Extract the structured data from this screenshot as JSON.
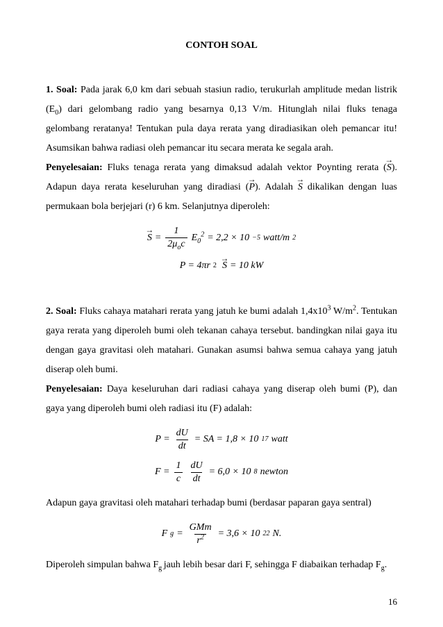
{
  "title": "CONTOH SOAL",
  "q1": {
    "label": "1. Soal:",
    "text_a": " Pada jarak 6,0 km dari sebuah stasiun radio, terukurlah amplitude medan listrik (E",
    "e0_sub": "0",
    "text_b": ") dari gelombang radio yang besarnya 0,13 V/m. Hitunglah nilai fluks tenaga gelombang reratanya! Tentukan pula daya rerata yang diradiasikan oleh pemancar itu! Asumsikan bahwa radiasi oleh pemancar itu secara merata ke segala arah."
  },
  "s1": {
    "label": "Penyelesaian:",
    "text_a": " Fluks tenaga rerata yang dimaksud adalah vektor Poynting rerata (",
    "svec": "S",
    "text_b": "). Adapun daya rerata keseluruhan yang diradiasi (",
    "pvec": "P",
    "text_c": "). Adalah ",
    "svec2": "S",
    "text_d": " dikalikan dengan luas permukaan bola berjejari (r) 6 km. Selanjutnya diperoleh:"
  },
  "eq1": {
    "S": "S",
    "eq": " = ",
    "num1": "1",
    "den_2mu": "2μ",
    "den_o": "o",
    "den_c": "c",
    "E": "E",
    "E_sub": "0",
    "E_sup": "2",
    "val": " = 2,2 × 10",
    "exp": "−5",
    "unit": "watt/m",
    "unit_sup": "2"
  },
  "eq2": {
    "P": "P = 4πr",
    "sup2": "2",
    "sp": " ",
    "S": "S",
    "val": " = 10 kW"
  },
  "q2": {
    "label": "2. Soal:",
    "text_a": " Fluks cahaya matahari rerata yang jatuh ke bumi adalah 1,4x10",
    "exp": "3",
    "text_b": " W/m",
    "exp2": "2",
    "text_c": ". Tentukan gaya rerata yang diperoleh bumi oleh tekanan cahaya tersebut. bandingkan nilai gaya itu dengan gaya gravitasi oleh matahari. Gunakan asumsi bahwa semua cahaya yang jatuh diserap oleh bumi."
  },
  "s2": {
    "label": "Penyelesaian:",
    "text": " Daya keseluruhan dari radiasi cahaya yang diserap oleh bumi (P), dan gaya yang diperoleh bumi oleh radiasi itu (F) adalah:"
  },
  "eq3": {
    "lhs": "P = ",
    "num": "dU",
    "den": "dt",
    "mid": " = SA = 1,8 × 10",
    "exp": "17",
    "unit": "watt"
  },
  "eq4": {
    "lhs": "F = ",
    "num1": "1",
    "den1": "c",
    "num2": "dU",
    "den2": "dt",
    "mid": " = 6,0 × 10",
    "exp": "8",
    "unit": "newton"
  },
  "p_centr": "Adapun gaya gravitasi oleh matahari terhadap bumi (berdasar paparan gaya sentral)",
  "eq5": {
    "lhs_F": "F",
    "lhs_sub": "g",
    "eq": " = ",
    "num": "GMm",
    "den_r": "r",
    "den_sup": "2",
    "mid": " = 3,6 × 10",
    "exp": "22",
    "unit": "N."
  },
  "concl": {
    "a": "Diperoleh simpulan bahwa F",
    "sub1": "g ",
    "b": "jauh lebih besar dari F, sehingga F diabaikan terhadap F",
    "sub2": "g",
    "c": "."
  },
  "pagenum": "16"
}
